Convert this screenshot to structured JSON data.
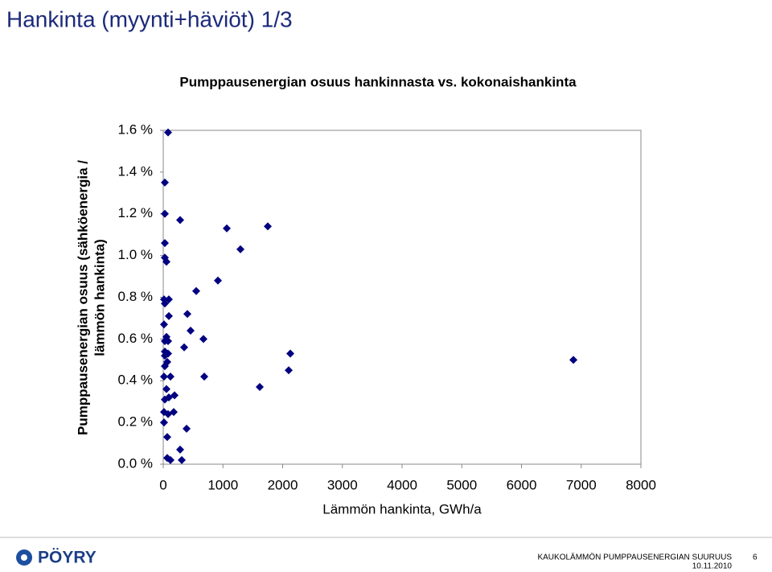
{
  "header": {
    "title": "Hankinta (myynti+häviöt) 1/3"
  },
  "chart_data": {
    "type": "scatter",
    "title": "Pumppausenergian osuus hankinnasta vs. kokonaishankinta",
    "x_label": "Lämmön hankinta, GWh/a",
    "y_label": [
      "Pumppausenergian osuus (sähköenergia /",
      "lämmön hankinta)"
    ],
    "color": "#000080",
    "x": [
      81,
      27,
      27,
      283,
      1064,
      1751,
      27,
      1293,
      27,
      54,
      552,
      916,
      13,
      94,
      27,
      404,
      94,
      13,
      458,
      673,
      54,
      27,
      81,
      350,
      27,
      81,
      27,
      67,
      27,
      2128,
      2101,
      6869,
      13,
      121,
      687,
      1616,
      54,
      189,
      94,
      27,
      13,
      81,
      175,
      13,
      391,
      67,
      283,
      67,
      310,
      121
    ],
    "values": [
      1.59,
      1.35,
      1.2,
      1.17,
      1.13,
      1.14,
      1.06,
      1.03,
      0.99,
      0.97,
      0.83,
      0.88,
      0.79,
      0.79,
      0.77,
      0.72,
      0.71,
      0.67,
      0.64,
      0.6,
      0.61,
      0.59,
      0.59,
      0.56,
      0.54,
      0.53,
      0.52,
      0.49,
      0.47,
      0.53,
      0.45,
      0.5,
      0.42,
      0.42,
      0.42,
      0.37,
      0.36,
      0.33,
      0.32,
      0.31,
      0.25,
      0.24,
      0.25,
      0.2,
      0.17,
      0.13,
      0.07,
      0.03,
      0.02,
      0.02
    ],
    "xlim": [
      0,
      8000
    ],
    "xticks": [
      0,
      1000,
      2000,
      3000,
      4000,
      5000,
      6000,
      7000,
      8000
    ],
    "ylim": [
      0,
      1.6
    ],
    "yticks": [
      {
        "value": 0,
        "label": "0.0 %"
      },
      {
        "value": 0.2,
        "label": "0.2 %"
      },
      {
        "value": 0.4,
        "label": "0.4 %"
      },
      {
        "value": 0.6,
        "label": "0.6 %"
      },
      {
        "value": 0.8,
        "label": "0.8 %"
      },
      {
        "value": 1.0,
        "label": "1.0 %"
      },
      {
        "value": 1.2,
        "label": "1.2 %"
      },
      {
        "value": 1.4,
        "label": "1.4 %"
      },
      {
        "value": 1.6,
        "label": "1.6 %"
      }
    ]
  },
  "footer": {
    "logo": "PÖYRY",
    "text": "KAUKOLÄMMÖN PUMPPAUSENERGIAN SUURUUS",
    "date": "10.11.2010",
    "page": "6"
  }
}
